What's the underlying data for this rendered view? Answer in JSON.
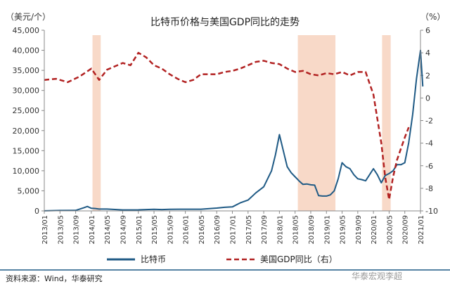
{
  "source_text": "资料来源：Wind，华泰研究",
  "watermark": "华泰宏观李超",
  "chart_data": {
    "type": "line",
    "title": "比特币价格与美国GDP同比的走势",
    "ylabel_left": "（美元/个）",
    "ylabel_right": "（%）",
    "xlabel": "",
    "ylim_left": [
      0,
      45000
    ],
    "ylim_right": [
      -10,
      6
    ],
    "yticks_left": [
      "0",
      "5,000",
      "10,000",
      "15,000",
      "20,000",
      "25,000",
      "30,000",
      "35,000",
      "40,000",
      "45,000"
    ],
    "yticks_right": [
      "-10",
      "-8",
      "-6",
      "-4",
      "-2",
      "0",
      "2",
      "4",
      "6"
    ],
    "xticks": [
      "2013/01",
      "2013/05",
      "2013/09",
      "2014/01",
      "2014/05",
      "2014/09",
      "2015/01",
      "2015/05",
      "2015/09",
      "2016/01",
      "2016/05",
      "2016/09",
      "2017/01",
      "2017/05",
      "2017/09",
      "2018/01",
      "2018/05",
      "2018/09",
      "2019/01",
      "2019/05",
      "2019/09",
      "2020/01",
      "2020/05",
      "2020/09",
      "2021/01"
    ],
    "shaded_regions": [
      [
        12.3,
        14.4
      ],
      [
        64.7,
        74.3
      ],
      [
        86.2,
        88.4
      ]
    ],
    "legend_position": "bottom",
    "series": [
      {
        "name": "比特币",
        "axis": "left",
        "style": "solid",
        "color": "#1f5a85",
        "x": [
          0,
          4,
          8,
          10,
          11,
          12,
          13,
          14,
          16,
          20,
          24,
          28,
          30,
          32,
          36,
          40,
          44,
          46,
          48,
          50,
          52,
          54,
          56,
          58,
          59,
          60,
          61,
          62,
          63,
          64,
          65,
          66,
          67,
          68,
          69,
          70,
          71,
          72,
          73,
          74,
          75,
          76,
          77,
          78,
          79,
          80,
          81,
          82,
          83,
          84,
          85,
          86,
          87,
          88,
          89,
          90,
          91,
          92,
          93,
          94,
          95,
          96,
          96.6
        ],
        "values": [
          15,
          110,
          130,
          750,
          1100,
          650,
          600,
          450,
          450,
          250,
          260,
          380,
          330,
          380,
          420,
          420,
          700,
          900,
          1000,
          2000,
          2700,
          4500,
          6000,
          10000,
          14000,
          19000,
          15000,
          11000,
          9500,
          8500,
          7500,
          6600,
          6700,
          6500,
          6400,
          3800,
          3700,
          3700,
          4000,
          5000,
          8000,
          12000,
          11000,
          10500,
          9000,
          8000,
          7800,
          7500,
          9000,
          10500,
          9000,
          7000,
          8800,
          9300,
          10000,
          11500,
          11500,
          12000,
          17000,
          24000,
          33000,
          40000,
          31000
        ]
      },
      {
        "name": "美国GDP同比（右）",
        "axis": "right",
        "style": "dashed",
        "color": "#b22222",
        "x": [
          0,
          3,
          6,
          9,
          12,
          14,
          16,
          18,
          20,
          22,
          24,
          26,
          28,
          30,
          32,
          34,
          36,
          38,
          40,
          42,
          44,
          46,
          48,
          50,
          52,
          54,
          56,
          58,
          60,
          62,
          64,
          66,
          68,
          70,
          72,
          74,
          76,
          78,
          80,
          82,
          84,
          86,
          87,
          88,
          89,
          90,
          91,
          92,
          93
        ],
        "values": [
          1.6,
          1.7,
          1.4,
          1.9,
          2.6,
          1.6,
          2.5,
          2.8,
          3.1,
          2.9,
          4.0,
          3.6,
          2.9,
          2.6,
          2.1,
          1.7,
          1.4,
          1.6,
          2.1,
          2.1,
          2.1,
          2.3,
          2.4,
          2.6,
          2.9,
          3.2,
          3.3,
          3.1,
          3.0,
          2.6,
          2.3,
          2.4,
          2.1,
          2.0,
          2.2,
          2.1,
          2.3,
          2.0,
          2.3,
          2.3,
          0.3,
          -4,
          -7,
          -9,
          -7,
          -5.5,
          -4.5,
          -3.5,
          -2.6
        ]
      }
    ]
  }
}
